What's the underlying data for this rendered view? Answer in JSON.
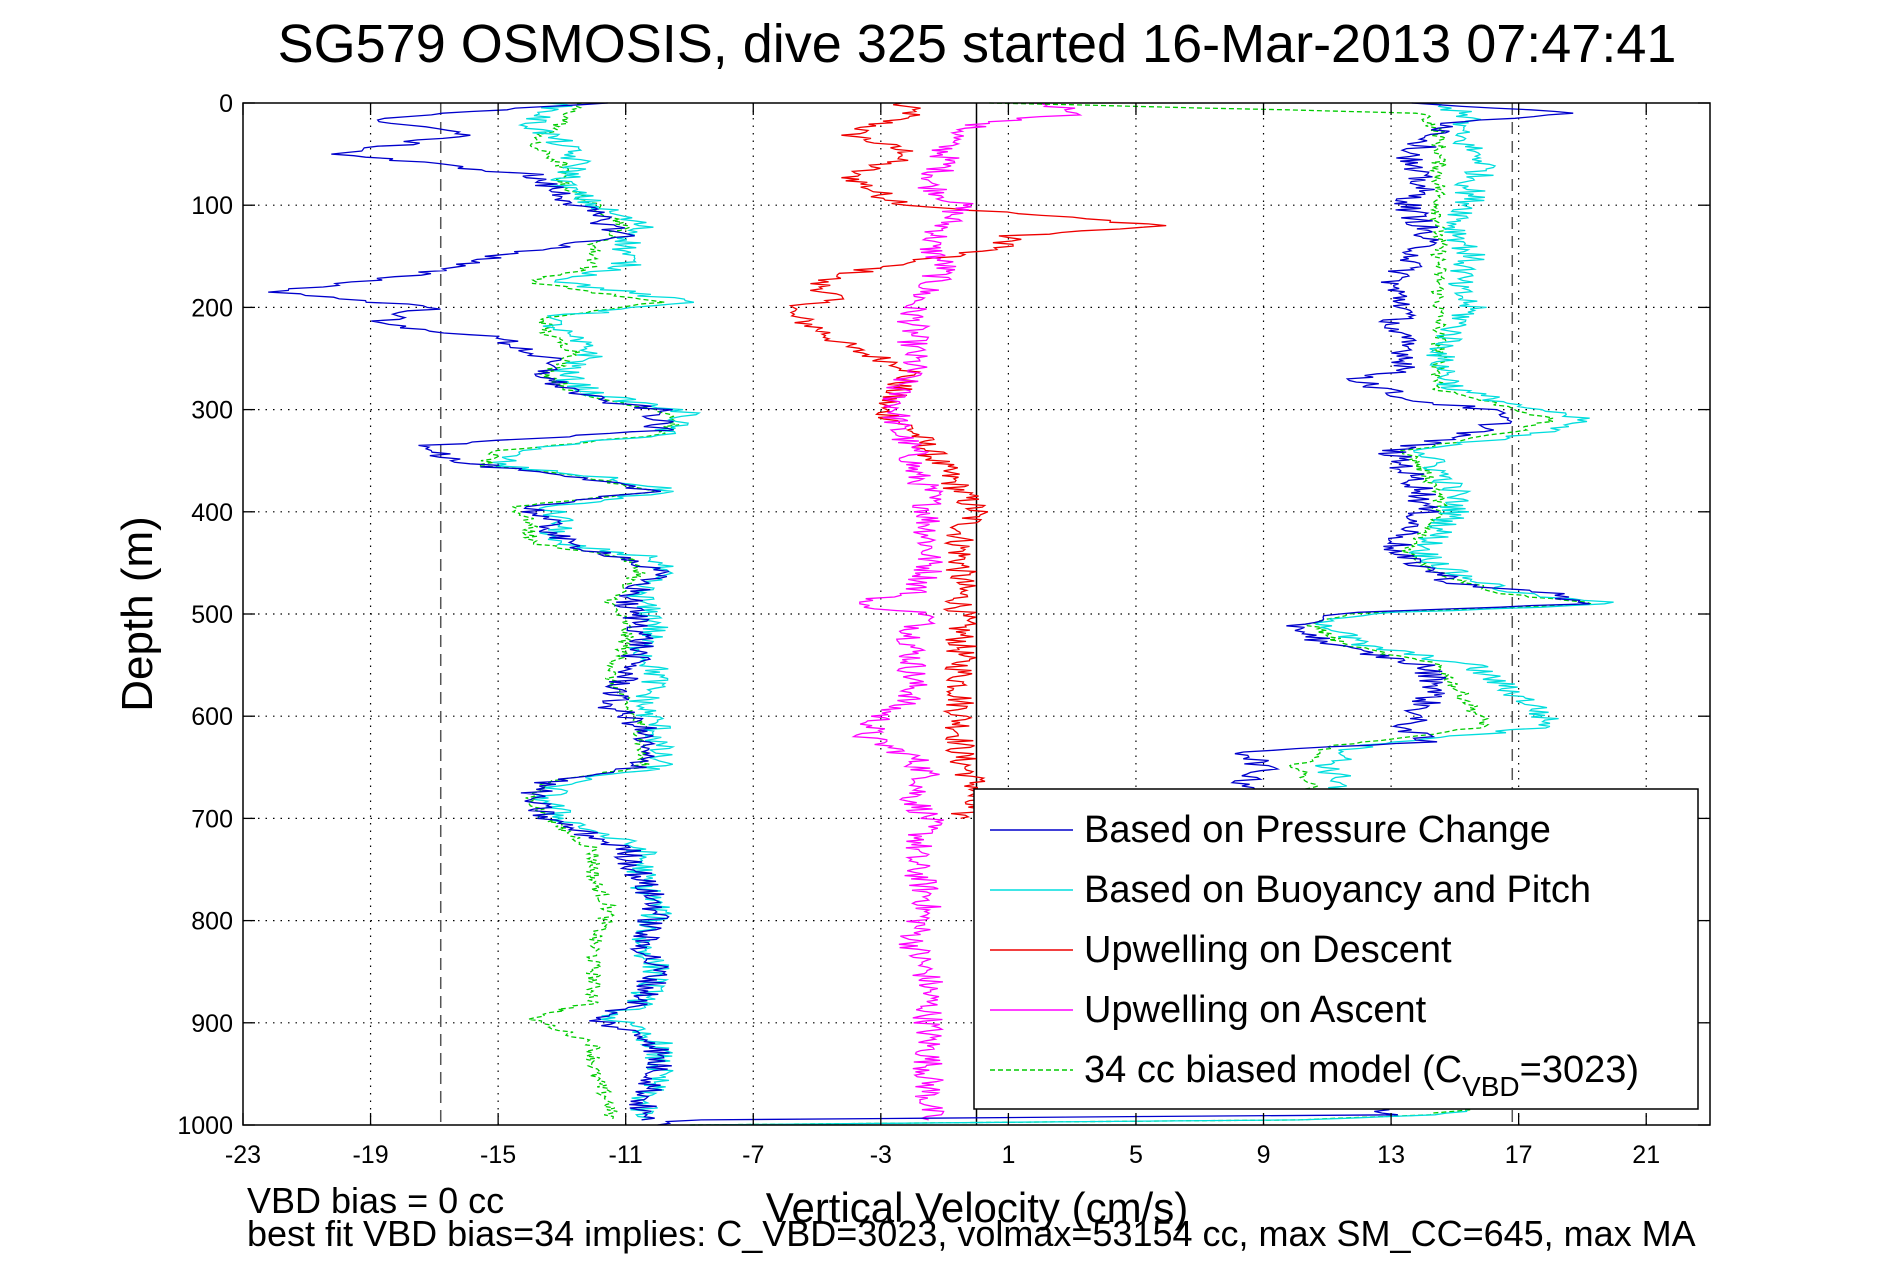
{
  "chart_data": {
    "type": "line",
    "title": "SG579 OSMOSIS, dive 325 started 16-Mar-2013 07:47:41",
    "xlabel": "Vertical Velocity (cm/s)",
    "ylabel": "Depth (m)",
    "xlim": [
      -23,
      23
    ],
    "ylim": [
      0,
      1000
    ],
    "y_reversed": true,
    "grid": true,
    "x_ticks": [
      -23,
      -19,
      -15,
      -11,
      -7,
      -3,
      1,
      5,
      9,
      13,
      17,
      21
    ],
    "y_ticks": [
      0,
      100,
      200,
      300,
      400,
      500,
      600,
      700,
      800,
      900,
      1000
    ],
    "reference_lines": [
      {
        "x": -16.8,
        "style": "dashed",
        "color": "#555555"
      },
      {
        "x": 0,
        "style": "solid",
        "color": "#000000"
      },
      {
        "x": 16.8,
        "style": "dashed",
        "color": "#555555"
      }
    ],
    "legend_position": "bottom-right",
    "series": [
      {
        "name": "Based on Pressure Change",
        "color": "#0000cc",
        "dash": "solid",
        "segments": [
          {
            "depth": [
              0,
              15,
              30,
              50,
              70,
              90,
              110,
              130,
              150,
              170,
              185,
              200,
              215,
              230,
              250,
              270,
              290,
              300,
              310,
              320,
              335,
              350,
              370,
              380,
              395,
              410,
              430,
              445,
              460,
              470,
              490,
              510,
              530,
              560,
              590,
              610,
              630,
              650,
              665,
              680,
              700,
              730,
              760,
              790,
              820,
              850,
              880,
              895,
              920,
              950,
              980,
              995
            ],
            "value": [
              -11.5,
              -19,
              -16,
              -20,
              -14,
              -13,
              -12,
              -11,
              -15,
              -18,
              -22,
              -17,
              -19,
              -15,
              -13.5,
              -13.5,
              -12,
              -10,
              -10,
              -10,
              -17,
              -16.5,
              -12,
              -10,
              -14,
              -13.5,
              -13,
              -11,
              -10,
              -10.5,
              -11,
              -10.5,
              -10.5,
              -11,
              -11.5,
              -10.5,
              -10.5,
              -10.5,
              -13.5,
              -14,
              -13.5,
              -11,
              -10.5,
              -10,
              -10.5,
              -10,
              -10.5,
              -12,
              -10,
              -10,
              -10.5,
              -10.5
            ]
          },
          {
            "depth": [
              0,
              10,
              20,
              40,
              60,
              80,
              100,
              120,
              140,
              160,
              180,
              200,
              220,
              240,
              260,
              270,
              290,
              300,
              310,
              320,
              340,
              360,
              380,
              400,
              420,
              440,
              460,
              470,
              480,
              490,
              500,
              510,
              530,
              550,
              570,
              590,
              610,
              625,
              635,
              650,
              665,
              680
            ],
            "value": [
              14,
              18.5,
              15,
              14,
              13.5,
              14,
              13.5,
              14,
              14,
              13.5,
              13,
              13.5,
              13,
              13.5,
              13.5,
              12,
              13.5,
              16,
              16.5,
              16,
              13,
              13.5,
              14,
              14,
              13.5,
              13,
              14.5,
              15,
              18,
              19,
              11,
              10,
              11,
              14,
              14.5,
              14,
              13.5,
              14,
              8.5,
              9,
              8.5,
              9
            ]
          },
          {
            "depth": [
              980,
              990,
              995,
              1000
            ],
            "value": [
              12,
              13,
              -9,
              -10
            ]
          }
        ]
      },
      {
        "name": "Based on Buoyancy and Pitch",
        "color": "#00dddd",
        "dash": "solid",
        "segments": [
          {
            "depth": [
              0,
              20,
              40,
              60,
              80,
              100,
              120,
              140,
              160,
              175,
              195,
              210,
              225,
              245,
              265,
              285,
              300,
              305,
              315,
              325,
              340,
              355,
              365,
              380,
              395,
              410,
              430,
              445,
              460,
              470,
              490,
              510,
              530,
              560,
              590,
              610,
              630,
              650,
              665,
              680,
              700,
              730,
              760,
              790,
              820,
              850,
              880,
              895,
              920,
              950,
              980,
              995
            ],
            "value": [
              -13,
              -14,
              -13,
              -12.5,
              -13,
              -12,
              -10.5,
              -11,
              -11,
              -13,
              -9,
              -13.5,
              -13,
              -12,
              -13,
              -12,
              -9.5,
              -9,
              -9.5,
              -10,
              -14.5,
              -15,
              -12,
              -9.5,
              -13.5,
              -13,
              -13.5,
              -10,
              -10,
              -10.5,
              -10.5,
              -10,
              -10.5,
              -10,
              -10.5,
              -10,
              -10,
              -10,
              -13,
              -13.5,
              -13,
              -10.5,
              -10.5,
              -10,
              -10.5,
              -10,
              -10.5,
              -11.5,
              -10,
              -10,
              -10.5,
              -10.5
            ]
          },
          {
            "depth": [
              0,
              10,
              30,
              60,
              80,
              100,
              120,
              150,
              180,
              200,
              220,
              250,
              280,
              300,
              310,
              320,
              340,
              360,
              380,
              400,
              420,
              440,
              460,
              480,
              490,
              500,
              510,
              530,
              550,
              570,
              590,
              610,
              630,
              650,
              665,
              680
            ],
            "value": [
              14,
              15.5,
              15,
              16,
              15.5,
              15.5,
              15,
              15.5,
              15,
              15.5,
              15,
              14.5,
              15,
              17.5,
              19,
              18,
              14,
              14.5,
              15,
              15,
              14.5,
              14,
              15,
              17,
              20,
              12,
              11,
              12,
              15.5,
              16.5,
              17.5,
              18,
              12,
              11,
              11.5,
              11
            ]
          },
          {
            "depth": [
              985,
              990,
              995,
              1000
            ],
            "value": [
              15.5,
              14,
              10,
              -9
            ]
          }
        ]
      },
      {
        "name": "Upwelling on Descent",
        "color": "#ee0000",
        "dash": "solid",
        "segments": [
          {
            "depth": [
              0,
              10,
              30,
              50,
              70,
              90,
              100,
              110,
              120,
              130,
              140,
              150,
              160,
              175,
              190,
              205,
              220,
              240,
              260,
              280,
              300,
              320,
              340,
              360,
              380,
              400,
              420,
              440,
              460,
              480,
              500,
              530,
              560,
              600,
              640,
              670,
              700
            ],
            "value": [
              -2.5,
              -2,
              -4,
              -2,
              -4,
              -3,
              -2,
              2,
              6,
              1,
              1,
              -1,
              -3,
              -5,
              -4.5,
              -6,
              -5,
              -4,
              -2,
              -2.5,
              -3,
              -2,
              -1.5,
              -1,
              -0.5,
              0,
              -0.5,
              -0.5,
              -0.5,
              -0.5,
              -0.5,
              -0.5,
              -0.5,
              -0.5,
              -0.5,
              0,
              -0.5
            ]
          }
        ]
      },
      {
        "name": "Upwelling on Ascent",
        "color": "#ff00ff",
        "dash": "solid",
        "segments": [
          {
            "depth": [
              0,
              10,
              20,
              40,
              60,
              80,
              100,
              120,
              140,
              160,
              180,
              200,
              220,
              240,
              260,
              280,
              300,
              320,
              340,
              360,
              380,
              400,
              420,
              440,
              460,
              480,
              490,
              500,
              520,
              540,
              560,
              580,
              600,
              620,
              640,
              660,
              680,
              700,
              740,
              780,
              820,
              860,
              900,
              940,
              980,
              995
            ],
            "value": [
              2,
              3.5,
              0,
              -1,
              -1,
              -1.5,
              -0.5,
              -1,
              -1.5,
              -1,
              -1.5,
              -2,
              -2,
              -2,
              -2,
              -2.5,
              -2.5,
              -2.5,
              -2,
              -2,
              -1.5,
              -1.5,
              -1.5,
              -1.5,
              -1.5,
              -2,
              -4,
              -1.5,
              -2,
              -2,
              -2,
              -2,
              -3,
              -3.5,
              -2,
              -1.5,
              -2,
              -1.5,
              -2,
              -1.5,
              -2,
              -1.5,
              -1.5,
              -1.5,
              -1.5,
              -1.5
            ]
          }
        ]
      },
      {
        "name": "34 cc biased model (C",
        "name_sub": "VBD",
        "name_suffix": "=3023)",
        "color": "#00cc00",
        "dash": "dashed",
        "segments": [
          {
            "depth": [
              0,
              20,
              40,
              60,
              80,
              100,
              120,
              140,
              160,
              175,
              195,
              210,
              225,
              245,
              265,
              285,
              300,
              305,
              315,
              325,
              340,
              355,
              365,
              380,
              395,
              410,
              430,
              445,
              460,
              470,
              490,
              510,
              530,
              560,
              590,
              610,
              630,
              650,
              665,
              680,
              700,
              730,
              760,
              790,
              820,
              850,
              880,
              895,
              920,
              950,
              980,
              995
            ],
            "value": [
              -12.5,
              -13,
              -14,
              -13,
              -13,
              -12,
              -11,
              -12,
              -12,
              -14,
              -10,
              -13.5,
              -13.5,
              -12.5,
              -13.5,
              -12.5,
              -10,
              -9.5,
              -9.5,
              -10,
              -15,
              -15.5,
              -12.5,
              -10,
              -14.5,
              -14,
              -14,
              -11,
              -10.5,
              -11,
              -11.5,
              -11,
              -11,
              -11.5,
              -11,
              -10.5,
              -10.5,
              -10.5,
              -13.5,
              -14,
              -13.5,
              -12,
              -12,
              -11.5,
              -12,
              -12,
              -12,
              -14,
              -12,
              -12,
              -11.5,
              -11.5
            ]
          },
          {
            "depth": [
              0,
              10,
              30,
              60,
              80,
              100,
              120,
              150,
              180,
              200,
              220,
              250,
              280,
              300,
              310,
              320,
              340,
              360,
              380,
              400,
              420,
              440,
              460,
              480,
              490,
              500,
              510,
              530,
              550,
              570,
              590,
              610,
              630,
              650,
              665,
              680
            ],
            "value": [
              0.5,
              14,
              14.5,
              14.5,
              14.5,
              14.5,
              14.5,
              14.5,
              14.5,
              14.5,
              14.5,
              14.5,
              14.5,
              17,
              18,
              17,
              13.5,
              14,
              14.5,
              14.5,
              14,
              13.5,
              14.5,
              16.5,
              19.5,
              11.5,
              10.5,
              11.5,
              14.5,
              15,
              15.5,
              16,
              11,
              10,
              10.5,
              10.5
            ]
          },
          {
            "depth": [
              985,
              990,
              995,
              1000
            ],
            "value": [
              15.5,
              14,
              10,
              -9
            ]
          }
        ]
      }
    ]
  },
  "footer": {
    "line1": "VBD bias = 0 cc",
    "line2": "best fit VBD bias=34 implies: C_VBD=3023, volmax=53154 cc, max SM_CC=645, max MA"
  },
  "colors": {
    "axis": "#000000",
    "grid": "#000000",
    "background": "#ffffff"
  }
}
